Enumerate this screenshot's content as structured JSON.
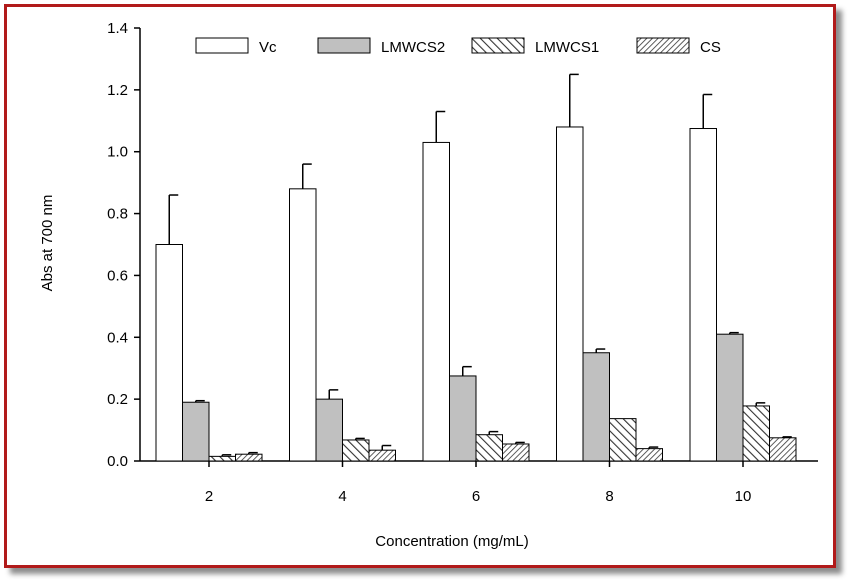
{
  "chart_data": {
    "type": "bar",
    "title": "",
    "xlabel": "Concentration (mg/mL)",
    "ylabel": "Abs at 700 nm",
    "categories": [
      "2",
      "4",
      "6",
      "8",
      "10"
    ],
    "ylim": [
      0,
      1.4
    ],
    "yticks": [
      "0.0",
      "0.2",
      "0.4",
      "0.6",
      "0.8",
      "1.0",
      "1.2",
      "1.4"
    ],
    "legend_position": "top",
    "series": [
      {
        "name": "Vc",
        "fill": "white",
        "values": [
          0.7,
          0.88,
          1.03,
          1.08,
          1.075
        ],
        "errors": [
          0.16,
          0.08,
          0.1,
          0.17,
          0.11
        ]
      },
      {
        "name": "LMWCS2",
        "fill": "#c0c0c0",
        "values": [
          0.19,
          0.2,
          0.275,
          0.35,
          0.41
        ],
        "errors": [
          0.005,
          0.03,
          0.03,
          0.012,
          0.005
        ]
      },
      {
        "name": "LMWCS1",
        "fill": "hatch-right",
        "values": [
          0.015,
          0.068,
          0.085,
          0.137,
          0.178
        ],
        "errors": [
          0.005,
          0.005,
          0.01,
          0.0,
          0.01
        ]
      },
      {
        "name": "CS",
        "fill": "hatch-dense",
        "values": [
          0.022,
          0.035,
          0.055,
          0.04,
          0.075
        ],
        "errors": [
          0.005,
          0.015,
          0.005,
          0.005,
          0.003
        ]
      }
    ]
  }
}
